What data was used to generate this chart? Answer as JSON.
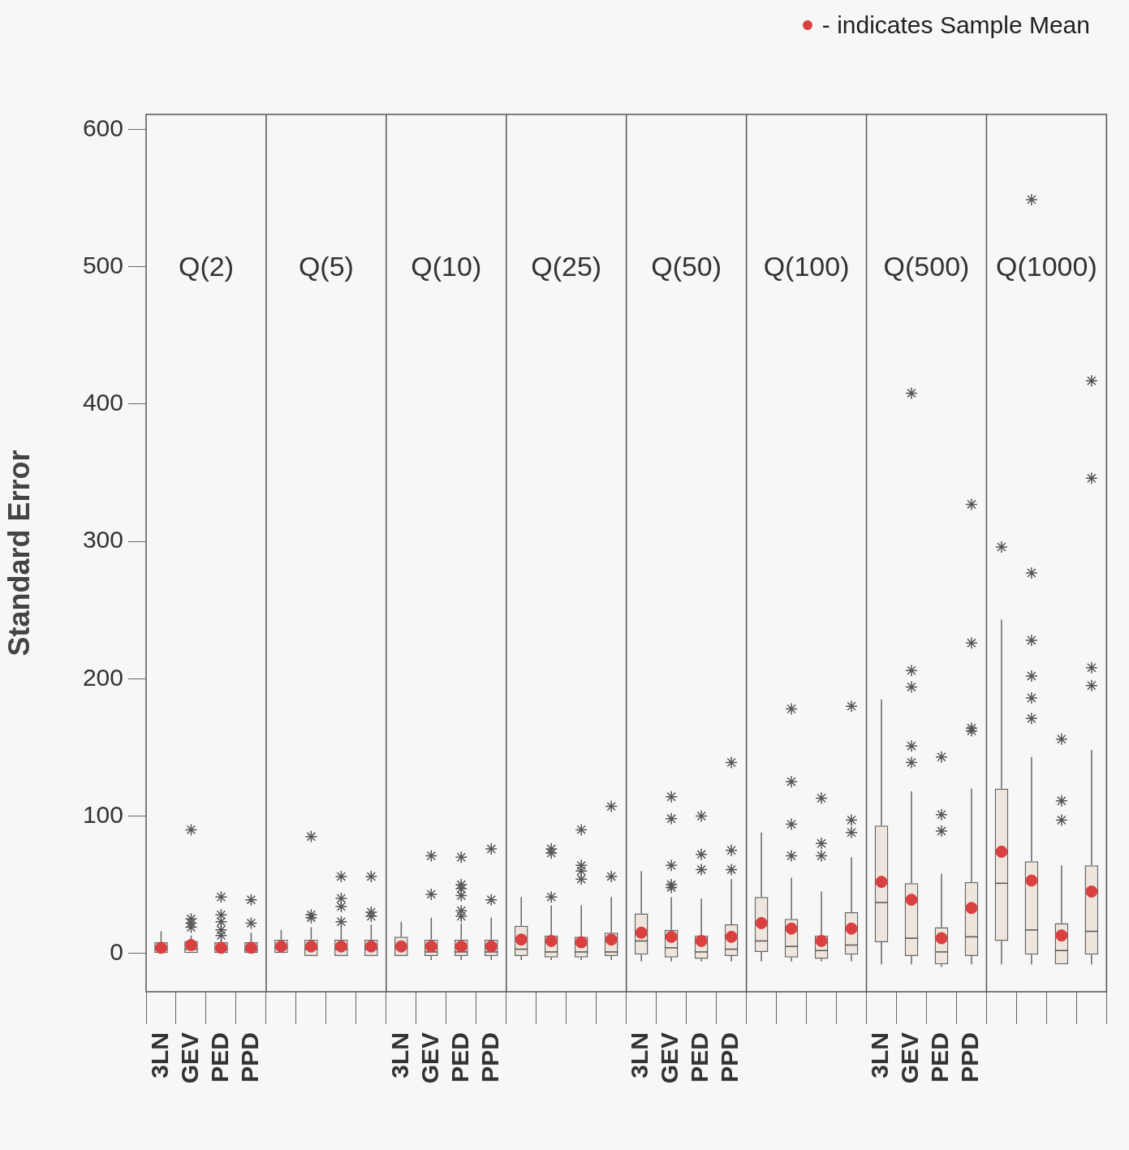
{
  "chart_data": {
    "type": "box",
    "subtitle": "- indicates Sample Mean",
    "ylabel": "Standard Error",
    "annotations": [
      "Q(2)",
      "Q(5)",
      "Q(10)",
      "Q(25)",
      "Q(50)",
      "Q(100)",
      "Q(500)",
      "Q(1000)"
    ],
    "categories": [
      "3LN",
      "GEV",
      "PED",
      "PPD",
      null,
      null,
      null,
      null,
      "3LN",
      "GEV",
      "PED",
      "PPD",
      null,
      null,
      null,
      null,
      "3LN",
      "GEV",
      "PED",
      "PPD",
      null,
      null,
      null,
      null,
      "3LN",
      "GEV",
      "PED",
      "PPD",
      null,
      null,
      null,
      null
    ],
    "ylim": [
      -28,
      611
    ],
    "yticks": [
      0,
      100,
      200,
      300,
      400,
      500,
      600
    ],
    "boxes": [
      {
        "low": 0,
        "q1": 0,
        "median": 3,
        "q3": 8,
        "high": 16,
        "mean": 4
      },
      {
        "low": 0,
        "q1": 0,
        "median": 3,
        "q3": 9,
        "high": 13,
        "mean": 6,
        "outliers": [
          90,
          25,
          22,
          19
        ]
      },
      {
        "low": 0,
        "q1": 0,
        "median": 3,
        "q3": 8,
        "high": 10,
        "mean": 4,
        "outliers": [
          41,
          28,
          23,
          17,
          13
        ]
      },
      {
        "low": 0,
        "q1": 0,
        "median": 2,
        "q3": 8,
        "high": 15,
        "mean": 4,
        "outliers": [
          39,
          22
        ]
      },
      {
        "low": 0,
        "q1": 0,
        "median": 4,
        "q3": 10,
        "high": 17,
        "mean": 5
      },
      {
        "low": -2,
        "q1": -2,
        "median": 3,
        "q3": 10,
        "high": 19,
        "mean": 5,
        "outliers": [
          85,
          28,
          26
        ]
      },
      {
        "low": -2,
        "q1": -2,
        "median": 3,
        "q3": 10,
        "high": 20,
        "mean": 5,
        "outliers": [
          56,
          40,
          34,
          23
        ]
      },
      {
        "low": -2,
        "q1": -2,
        "median": 3,
        "q3": 10,
        "high": 21,
        "mean": 5,
        "outliers": [
          56,
          30,
          27
        ]
      },
      {
        "low": -2,
        "q1": -2,
        "median": 4,
        "q3": 12,
        "high": 23,
        "mean": 5
      },
      {
        "low": -5,
        "q1": -2,
        "median": 1,
        "q3": 10,
        "high": 26,
        "mean": 5,
        "outliers": [
          71,
          43
        ]
      },
      {
        "low": -5,
        "q1": -2,
        "median": 1,
        "q3": 10,
        "high": 22,
        "mean": 5,
        "outliers": [
          70,
          50,
          47,
          42,
          31,
          27
        ]
      },
      {
        "low": -5,
        "q1": -2,
        "median": 1,
        "q3": 10,
        "high": 26,
        "mean": 5,
        "outliers": [
          76,
          39
        ]
      },
      {
        "low": -5,
        "q1": -2,
        "median": 3,
        "q3": 20,
        "high": 41,
        "mean": 10
      },
      {
        "low": -5,
        "q1": -3,
        "median": 1,
        "q3": 13,
        "high": 35,
        "mean": 9,
        "outliers": [
          76,
          73,
          41
        ]
      },
      {
        "low": -5,
        "q1": -3,
        "median": 1,
        "q3": 12,
        "high": 35,
        "mean": 8,
        "outliers": [
          90,
          64,
          60,
          54
        ]
      },
      {
        "low": -5,
        "q1": -2,
        "median": 1,
        "q3": 15,
        "high": 41,
        "mean": 10,
        "outliers": [
          107,
          56
        ]
      },
      {
        "low": -6,
        "q1": -1,
        "median": 9,
        "q3": 29,
        "high": 60,
        "mean": 15
      },
      {
        "low": -6,
        "q1": -3,
        "median": 4,
        "q3": 17,
        "high": 41,
        "mean": 12,
        "outliers": [
          114,
          98,
          64,
          50,
          48
        ]
      },
      {
        "low": -6,
        "q1": -4,
        "median": 1,
        "q3": 13,
        "high": 40,
        "mean": 9,
        "outliers": [
          100,
          72,
          61
        ]
      },
      {
        "low": -6,
        "q1": -2,
        "median": 3,
        "q3": 21,
        "high": 54,
        "mean": 12,
        "outliers": [
          139,
          75,
          61
        ]
      },
      {
        "low": -6,
        "q1": 1,
        "median": 9,
        "q3": 41,
        "high": 88,
        "mean": 22
      },
      {
        "low": -6,
        "q1": -3,
        "median": 5,
        "q3": 25,
        "high": 55,
        "mean": 18,
        "outliers": [
          178,
          125,
          94,
          71
        ]
      },
      {
        "low": -6,
        "q1": -4,
        "median": 2,
        "q3": 13,
        "high": 45,
        "mean": 9,
        "outliers": [
          113,
          80,
          71
        ]
      },
      {
        "low": -6,
        "q1": -1,
        "median": 6,
        "q3": 30,
        "high": 70,
        "mean": 18,
        "outliers": [
          180,
          97,
          88
        ]
      },
      {
        "low": -8,
        "q1": 8,
        "median": 37,
        "q3": 93,
        "high": 185,
        "mean": 52
      },
      {
        "low": -8,
        "q1": -2,
        "median": 11,
        "q3": 51,
        "high": 118,
        "mean": 39,
        "outliers": [
          408,
          206,
          194,
          151,
          139
        ]
      },
      {
        "low": -10,
        "q1": -8,
        "median": 1,
        "q3": 19,
        "high": 58,
        "mean": 11,
        "outliers": [
          143,
          101,
          89
        ]
      },
      {
        "low": -8,
        "q1": -2,
        "median": 12,
        "q3": 52,
        "high": 120,
        "mean": 33,
        "outliers": [
          327,
          226,
          164,
          162
        ]
      },
      {
        "low": -8,
        "q1": 9,
        "median": 51,
        "q3": 120,
        "high": 243,
        "mean": 74,
        "outliers": [
          296
        ]
      },
      {
        "low": -8,
        "q1": -1,
        "median": 17,
        "q3": 67,
        "high": 143,
        "mean": 53,
        "outliers": [
          549,
          277,
          228,
          202,
          186,
          171
        ]
      },
      {
        "low": -8,
        "q1": -8,
        "median": 2,
        "q3": 22,
        "high": 64,
        "mean": 13,
        "outliers": [
          156,
          111,
          97
        ]
      },
      {
        "low": -8,
        "q1": -1,
        "median": 16,
        "q3": 64,
        "high": 148,
        "mean": 45,
        "outliers": [
          417,
          346,
          208,
          195
        ]
      }
    ]
  }
}
